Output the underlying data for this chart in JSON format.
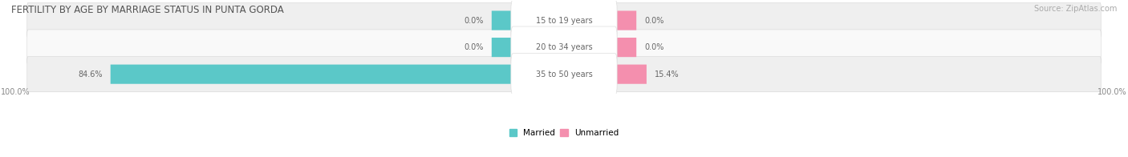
{
  "title": "FERTILITY BY AGE BY MARRIAGE STATUS IN PUNTA GORDA",
  "source": "Source: ZipAtlas.com",
  "categories": [
    "15 to 19 years",
    "20 to 34 years",
    "35 to 50 years"
  ],
  "married_values": [
    0.0,
    0.0,
    84.6
  ],
  "unmarried_values": [
    0.0,
    0.0,
    15.4
  ],
  "married_color": "#5bc8c8",
  "unmarried_color": "#f48fae",
  "row_bg_colors": [
    "#efefef",
    "#f9f9f9",
    "#efefef"
  ],
  "title_color": "#555555",
  "title_fontsize": 8.5,
  "label_fontsize": 7.0,
  "axis_label_fontsize": 7.0,
  "source_fontsize": 7.0,
  "max_value": 100.0,
  "left_axis_label": "100.0%",
  "right_axis_label": "100.0%"
}
